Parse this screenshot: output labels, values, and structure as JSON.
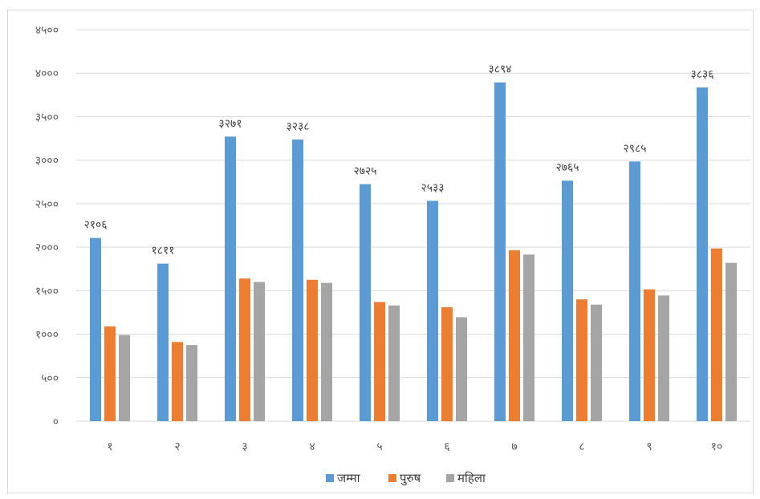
{
  "chart_data": {
    "type": "bar",
    "title": "",
    "xlabel": "",
    "ylabel": "",
    "ylim": [
      0,
      4500
    ],
    "yticks": [
      0,
      500,
      1000,
      1500,
      2000,
      2500,
      3000,
      3500,
      4000,
      4500
    ],
    "ytick_labels": [
      "०",
      "५००",
      "१०००",
      "१५००",
      "२०००",
      "२५००",
      "३०००",
      "३५००",
      "४०००",
      "४५००"
    ],
    "categories": [
      "१",
      "२",
      "३",
      "४",
      "५",
      "६",
      "७",
      "८",
      "९",
      "१०"
    ],
    "grid": true,
    "legend_position": "bottom",
    "series": [
      {
        "name": "जम्मा",
        "color": "#5b9bd5",
        "values": [
          2106,
          1811,
          3271,
          3238,
          2725,
          2533,
          3894,
          2765,
          2985,
          3836
        ]
      },
      {
        "name": "पुरुष",
        "color": "#ed7d31",
        "values": [
          1090,
          910,
          1640,
          1625,
          1370,
          1310,
          1965,
          1400,
          1515,
          1985
        ]
      },
      {
        "name": "महिला",
        "color": "#a5a5a5",
        "values": [
          990,
          875,
          1600,
          1590,
          1330,
          1195,
          1915,
          1340,
          1445,
          1820
        ]
      }
    ],
    "data_labels": {
      "series": "जम्मा",
      "labels": [
        "२१०६",
        "१८११",
        "३२७१",
        "३२३८",
        "२७२५",
        "२५३३",
        "३८९४",
        "२७६५",
        "२९८५",
        "३८३६"
      ]
    }
  }
}
